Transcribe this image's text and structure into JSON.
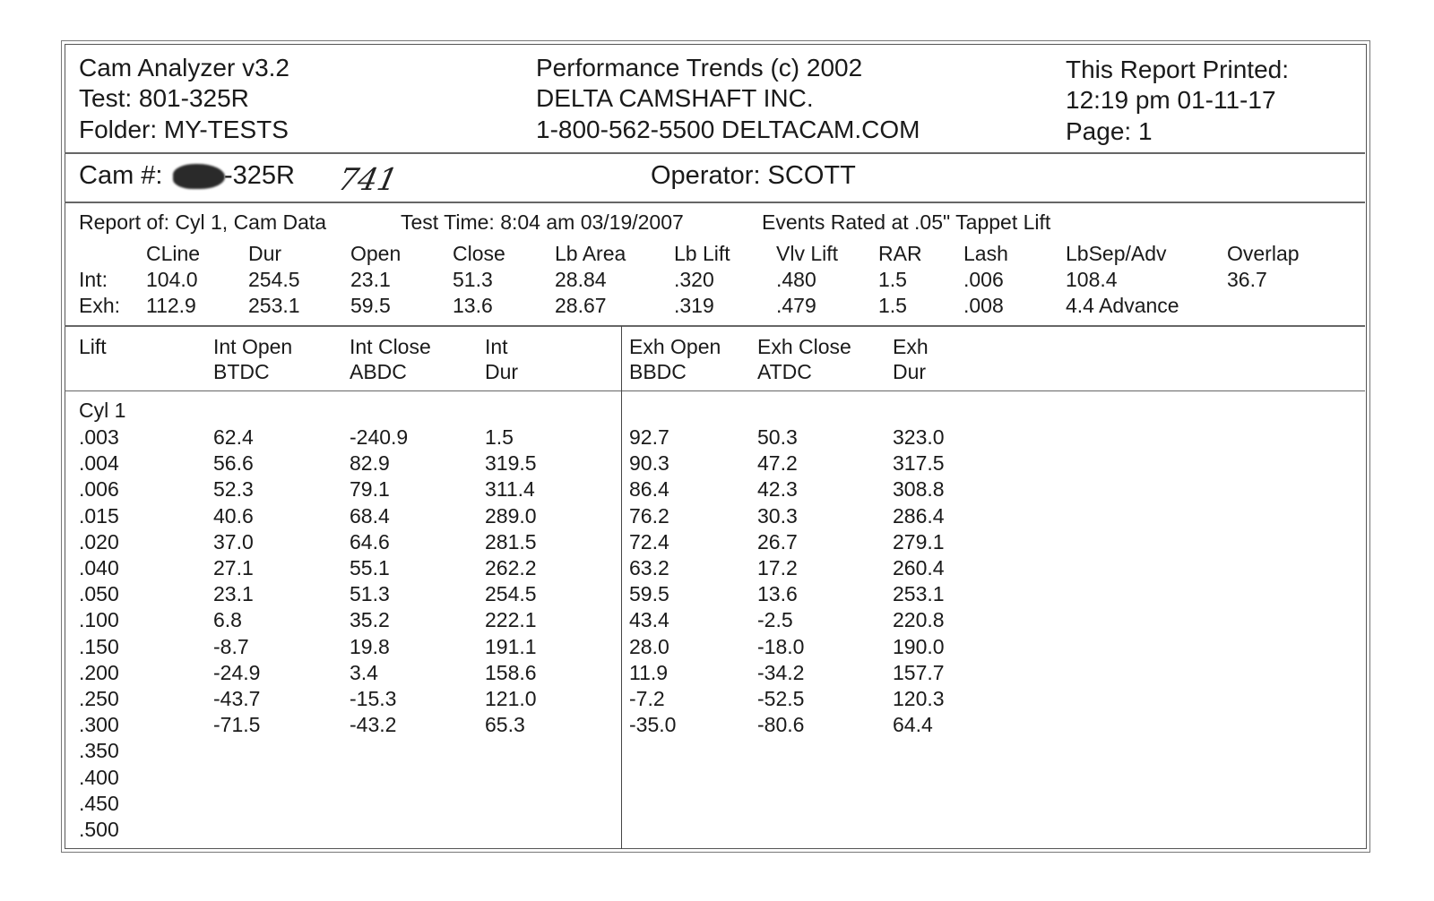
{
  "header": {
    "left": [
      "Cam Analyzer v3.2",
      "Test: 801-325R",
      "Folder: MY-TESTS"
    ],
    "center": [
      "Performance Trends (c) 2002",
      "DELTA CAMSHAFT INC.",
      "1-800-562-5500 DELTACAM.COM"
    ],
    "right": [
      "This Report Printed:",
      "12:19 pm 01-11-17",
      "Page: 1"
    ]
  },
  "cam_row": {
    "cam_label": "Cam #:",
    "cam_number_suffix": "-325R",
    "handwritten_note": "741",
    "operator": "Operator: SCOTT"
  },
  "report": {
    "report_of": "Report of:  Cyl 1, Cam Data",
    "test_time": "Test Time: 8:04 am  03/19/2007",
    "events_rated": "Events Rated at .05\" Tappet Lift",
    "columns": [
      "",
      "CLine",
      "Dur",
      "Open",
      "Close",
      "Lb Area",
      "Lb Lift",
      "Vlv Lift",
      "RAR",
      "Lash",
      "LbSep/Adv",
      "Overlap"
    ],
    "rows": [
      [
        "Int:",
        "104.0",
        "254.5",
        "23.1",
        "51.3",
        "28.84",
        ".320",
        ".480",
        "1.5",
        ".006",
        "108.4",
        "36.7"
      ],
      [
        "Exh:",
        "112.9",
        "253.1",
        "59.5",
        "13.6",
        "28.67",
        ".319",
        ".479",
        "1.5",
        ".008",
        "4.4  Advance",
        ""
      ]
    ]
  },
  "table": {
    "headers": [
      [
        "Lift",
        ""
      ],
      [
        "Int Open",
        "BTDC"
      ],
      [
        "Int Close",
        "ABDC"
      ],
      [
        "Int",
        "Dur"
      ],
      [
        "Exh Open",
        "BBDC"
      ],
      [
        "Exh Close",
        "ATDC"
      ],
      [
        "Exh",
        "Dur"
      ]
    ],
    "group_label": "Cyl 1",
    "rows": [
      [
        ".003",
        "62.4",
        "-240.9",
        "1.5",
        "92.7",
        "50.3",
        "323.0"
      ],
      [
        ".004",
        "56.6",
        "82.9",
        "319.5",
        "90.3",
        "47.2",
        "317.5"
      ],
      [
        ".006",
        "52.3",
        "79.1",
        "311.4",
        "86.4",
        "42.3",
        "308.8"
      ],
      [
        ".015",
        "40.6",
        "68.4",
        "289.0",
        "76.2",
        "30.3",
        "286.4"
      ],
      [
        ".020",
        "37.0",
        "64.6",
        "281.5",
        "72.4",
        "26.7",
        "279.1"
      ],
      [
        ".040",
        "27.1",
        "55.1",
        "262.2",
        "63.2",
        "17.2",
        "260.4"
      ],
      [
        ".050",
        "23.1",
        "51.3",
        "254.5",
        "59.5",
        "13.6",
        "253.1"
      ],
      [
        ".100",
        "6.8",
        "35.2",
        "222.1",
        "43.4",
        "-2.5",
        "220.8"
      ],
      [
        ".150",
        "-8.7",
        "19.8",
        "191.1",
        "28.0",
        "-18.0",
        "190.0"
      ],
      [
        ".200",
        "-24.9",
        "3.4",
        "158.6",
        "11.9",
        "-34.2",
        "157.7"
      ],
      [
        ".250",
        "-43.7",
        "-15.3",
        "121.0",
        "-7.2",
        "-52.5",
        "120.3"
      ],
      [
        ".300",
        "-71.5",
        "-43.2",
        "65.3",
        "-35.0",
        "-80.6",
        "64.4"
      ],
      [
        ".350",
        "",
        "",
        "",
        "",
        "",
        ""
      ],
      [
        ".400",
        "",
        "",
        "",
        "",
        "",
        ""
      ],
      [
        ".450",
        "",
        "",
        "",
        "",
        "",
        ""
      ],
      [
        ".500",
        "",
        "",
        "",
        "",
        "",
        ""
      ]
    ]
  }
}
